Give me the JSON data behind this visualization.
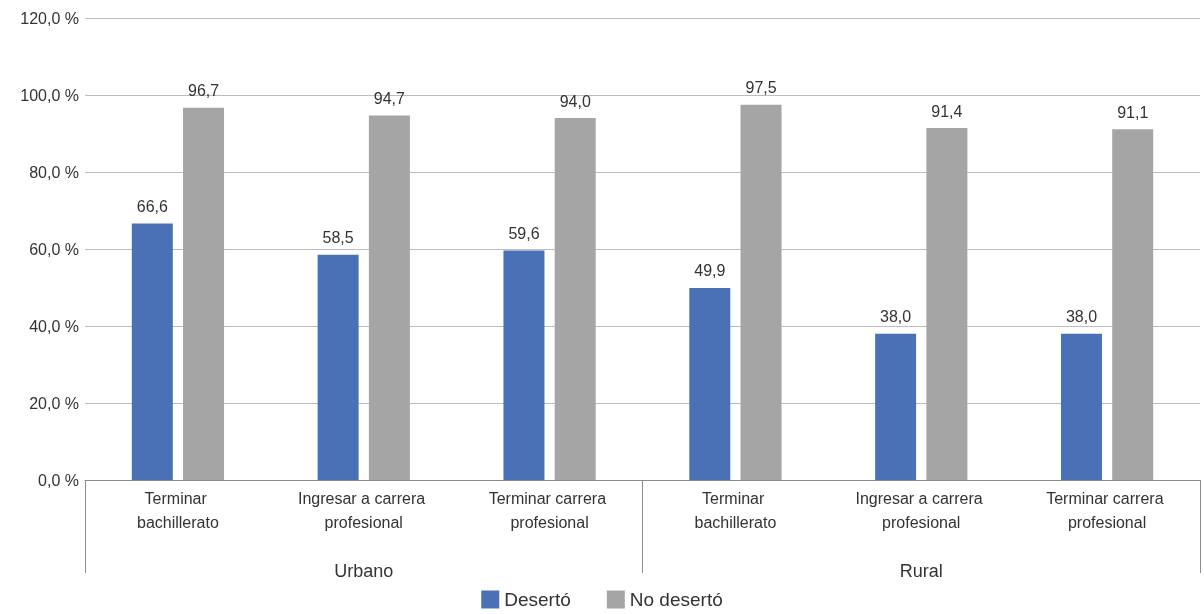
{
  "chart_data": {
    "type": "bar",
    "categories": [
      "Terminar bachillerato",
      "Ingresar a carrera profesional",
      "Terminar carrera profesional",
      "Terminar bachillerato",
      "Ingresar a carrera profesional",
      "Terminar carrera profesional"
    ],
    "series": [
      {
        "name": "Desertó",
        "color": "#4a70b6",
        "values": [
          66.6,
          58.5,
          59.6,
          49.9,
          38.0,
          38.0
        ],
        "value_labels": [
          "66,6",
          "58,5",
          "59,6",
          "49,9",
          "38,0",
          "38,0"
        ]
      },
      {
        "name": "No desertó",
        "color": "#a5a5a5",
        "values": [
          96.7,
          94.7,
          94.0,
          97.5,
          91.4,
          91.1
        ],
        "value_labels": [
          "96,7",
          "94,7",
          "94,0",
          "97,5",
          "91,4",
          "91,1"
        ]
      }
    ],
    "annotations": [
      "Urbano",
      "Rural"
    ],
    "ylim": [
      0,
      120
    ],
    "yticks": [
      {
        "value": 0,
        "label": "0,0 %"
      },
      {
        "value": 20,
        "label": "20,0 %"
      },
      {
        "value": 40,
        "label": "40,0 %"
      },
      {
        "value": 60,
        "label": "60,0 %"
      },
      {
        "value": 80,
        "label": "80,0 %"
      },
      {
        "value": 100,
        "label": "100,0 %"
      },
      {
        "value": 120,
        "label": "120,0 %"
      }
    ],
    "grid": "y",
    "legend": "bottom"
  }
}
